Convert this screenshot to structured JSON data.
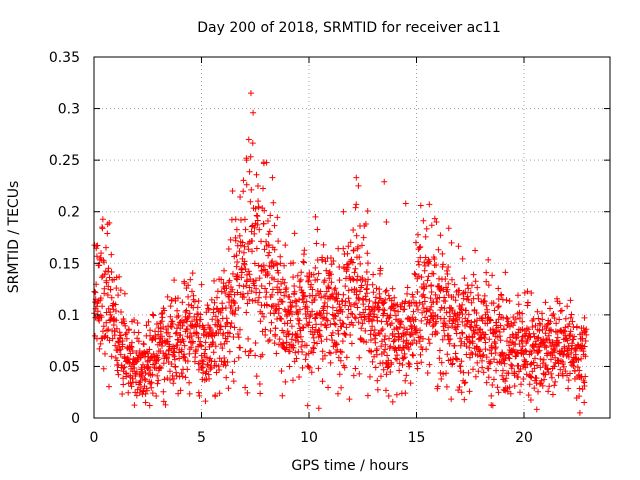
{
  "chart_data": {
    "type": "scatter",
    "title": "Day 200 of 2018, SRMTID for receiver ac11",
    "xlabel": "GPS time / hours",
    "ylabel": "SRMTID / TECUs",
    "xlim": [
      0,
      24
    ],
    "ylim": [
      0,
      0.35
    ],
    "xticks": [
      0,
      5,
      10,
      15,
      20
    ],
    "xtick_labels": [
      "0",
      "5",
      "10",
      "15",
      "20"
    ],
    "yticks": [
      0,
      0.05,
      0.1,
      0.15,
      0.2,
      0.25,
      0.3,
      0.35
    ],
    "ytick_labels": [
      "0",
      "0.05",
      "0.1",
      "0.15",
      "0.2",
      "0.25",
      "0.3",
      "0.35"
    ],
    "grid": true,
    "marker": "+",
    "color": "#ff0000",
    "x_range_of_data": [
      0,
      22.9
    ],
    "trend_points": [
      {
        "x": 0.0,
        "y": 0.11
      },
      {
        "x": 0.3,
        "y": 0.14
      },
      {
        "x": 0.6,
        "y": 0.12
      },
      {
        "x": 1.0,
        "y": 0.09
      },
      {
        "x": 1.5,
        "y": 0.065
      },
      {
        "x": 2.2,
        "y": 0.05
      },
      {
        "x": 3.0,
        "y": 0.07
      },
      {
        "x": 4.0,
        "y": 0.075
      },
      {
        "x": 4.6,
        "y": 0.085
      },
      {
        "x": 5.2,
        "y": 0.065
      },
      {
        "x": 5.8,
        "y": 0.08
      },
      {
        "x": 6.5,
        "y": 0.12
      },
      {
        "x": 7.2,
        "y": 0.16
      },
      {
        "x": 7.8,
        "y": 0.15
      },
      {
        "x": 8.5,
        "y": 0.11
      },
      {
        "x": 9.2,
        "y": 0.095
      },
      {
        "x": 10.0,
        "y": 0.1
      },
      {
        "x": 10.8,
        "y": 0.1
      },
      {
        "x": 11.5,
        "y": 0.1
      },
      {
        "x": 12.2,
        "y": 0.12
      },
      {
        "x": 13.0,
        "y": 0.1
      },
      {
        "x": 14.0,
        "y": 0.08
      },
      {
        "x": 14.8,
        "y": 0.09
      },
      {
        "x": 15.5,
        "y": 0.12
      },
      {
        "x": 16.2,
        "y": 0.11
      },
      {
        "x": 17.0,
        "y": 0.085
      },
      {
        "x": 18.0,
        "y": 0.085
      },
      {
        "x": 19.0,
        "y": 0.075
      },
      {
        "x": 20.0,
        "y": 0.07
      },
      {
        "x": 21.0,
        "y": 0.065
      },
      {
        "x": 22.0,
        "y": 0.07
      },
      {
        "x": 22.9,
        "y": 0.06
      }
    ],
    "outliers": [
      {
        "x": 7.3,
        "y": 0.315
      },
      {
        "x": 7.4,
        "y": 0.296
      },
      {
        "x": 7.2,
        "y": 0.27
      },
      {
        "x": 7.1,
        "y": 0.25
      },
      {
        "x": 7.9,
        "y": 0.248
      },
      {
        "x": 8.3,
        "y": 0.233
      },
      {
        "x": 12.2,
        "y": 0.233
      },
      {
        "x": 12.3,
        "y": 0.225
      },
      {
        "x": 13.5,
        "y": 0.229
      },
      {
        "x": 13.6,
        "y": 0.19
      },
      {
        "x": 15.2,
        "y": 0.206
      },
      {
        "x": 14.5,
        "y": 0.208
      },
      {
        "x": 16.5,
        "y": 0.184
      },
      {
        "x": 10.3,
        "y": 0.195
      },
      {
        "x": 17.0,
        "y": 0.03
      },
      {
        "x": 17.1,
        "y": 0.025
      },
      {
        "x": 22.6,
        "y": 0.005
      },
      {
        "x": 22.8,
        "y": 0.015
      },
      {
        "x": 2.4,
        "y": 0.015
      },
      {
        "x": 8.9,
        "y": 0.035
      },
      {
        "x": 11.6,
        "y": 0.2
      }
    ],
    "point_count_approx": 2400
  }
}
